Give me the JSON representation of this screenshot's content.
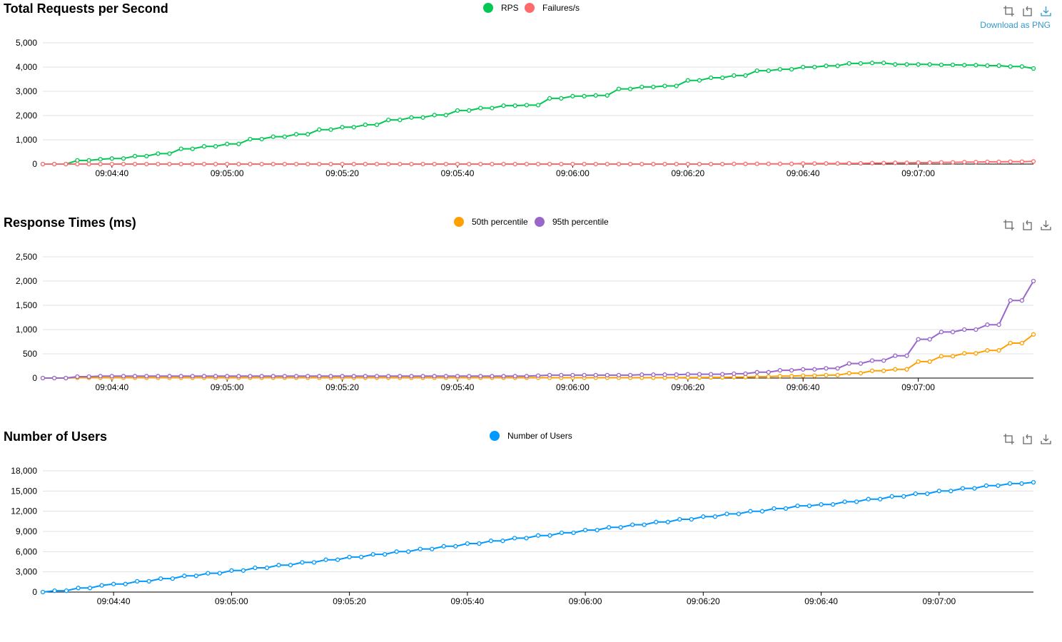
{
  "charts": [
    {
      "title": "Total Requests per Second",
      "tooltip": "Download as PNG",
      "legend": [
        {
          "name": "RPS",
          "color": "#00c853"
        },
        {
          "name": "Failures/s",
          "color": "#ff6b6b"
        }
      ]
    },
    {
      "title": "Response Times (ms)",
      "tooltip": "",
      "legend": [
        {
          "name": "50th percentile",
          "color": "#ff9f00"
        },
        {
          "name": "95th percentile",
          "color": "#9966cc"
        }
      ]
    },
    {
      "title": "Number of Users",
      "tooltip": "",
      "legend": [
        {
          "name": "Number of Users",
          "color": "#0099ff"
        }
      ]
    }
  ],
  "toolbox_icons": [
    "zoom-icon",
    "zoom-reset-icon",
    "download-icon"
  ],
  "chart_data": [
    {
      "type": "line",
      "title": "Total Requests per Second",
      "x_ticks": [
        "09:04:40",
        "09:05:00",
        "09:05:20",
        "09:05:40",
        "09:06:00",
        "09:06:20",
        "09:06:40",
        "09:07:00"
      ],
      "y_ticks": [
        "0",
        "1,000",
        "2,000",
        "3,000",
        "4,000",
        "5,000"
      ],
      "ylim": [
        0,
        5000
      ],
      "grid": true,
      "legend_position": "top-center",
      "x_time": {
        "first_sample": "09:04:28",
        "sample_interval_seconds": 2,
        "tick_interval_seconds": 20,
        "first_tick": "09:04:40"
      },
      "series": [
        {
          "name": "RPS",
          "color": "#00c853",
          "values": [
            0,
            0,
            0,
            150,
            150,
            200,
            230,
            230,
            330,
            330,
            430,
            430,
            630,
            630,
            730,
            730,
            830,
            830,
            1030,
            1030,
            1130,
            1130,
            1230,
            1230,
            1420,
            1420,
            1520,
            1520,
            1620,
            1620,
            1820,
            1820,
            1920,
            1920,
            2020,
            2020,
            2210,
            2210,
            2310,
            2310,
            2410,
            2410,
            2430,
            2430,
            2710,
            2710,
            2800,
            2800,
            2830,
            2830,
            3100,
            3100,
            3180,
            3180,
            3220,
            3220,
            3450,
            3450,
            3560,
            3560,
            3650,
            3650,
            3850,
            3850,
            3910,
            3910,
            4000,
            4000,
            4050,
            4050,
            4150,
            4150,
            4170,
            4170,
            4110,
            4110,
            4110,
            4110,
            4090,
            4090,
            4080,
            4080,
            4060,
            4060,
            4020,
            4020,
            3940
          ]
        },
        {
          "name": "Failures/s",
          "color": "#ff6b6b",
          "values": [
            0,
            0,
            0,
            0,
            0,
            0,
            0,
            0,
            0,
            0,
            0,
            0,
            0,
            0,
            0,
            0,
            0,
            0,
            0,
            0,
            0,
            0,
            0,
            0,
            0,
            0,
            0,
            0,
            0,
            0,
            0,
            0,
            0,
            0,
            0,
            0,
            0,
            0,
            0,
            0,
            0,
            0,
            0,
            0,
            0,
            0,
            0,
            0,
            0,
            0,
            0,
            0,
            0,
            0,
            0,
            0,
            0,
            0,
            0,
            0,
            5,
            5,
            10,
            10,
            10,
            10,
            20,
            20,
            25,
            25,
            30,
            30,
            40,
            40,
            50,
            50,
            60,
            60,
            70,
            70,
            80,
            80,
            90,
            90,
            100,
            100,
            110
          ]
        }
      ]
    },
    {
      "type": "line",
      "title": "Response Times (ms)",
      "x_ticks": [
        "09:04:40",
        "09:05:00",
        "09:05:20",
        "09:05:40",
        "09:06:00",
        "09:06:20",
        "09:06:40",
        "09:07:00"
      ],
      "y_ticks": [
        "0",
        "500",
        "1,000",
        "1,500",
        "2,000",
        "2,500"
      ],
      "ylim": [
        0,
        2500
      ],
      "grid": true,
      "legend_position": "top-center",
      "x_time": {
        "first_sample": "09:04:28",
        "sample_interval_seconds": 2,
        "tick_interval_seconds": 20,
        "first_tick": "09:04:40"
      },
      "series": [
        {
          "name": "50th percentile",
          "color": "#ff9f00",
          "values": [
            0,
            0,
            0,
            8,
            8,
            8,
            8,
            8,
            8,
            8,
            8,
            8,
            8,
            8,
            8,
            8,
            8,
            8,
            8,
            8,
            8,
            8,
            8,
            8,
            8,
            8,
            8,
            8,
            8,
            8,
            8,
            8,
            8,
            8,
            8,
            8,
            8,
            8,
            8,
            8,
            8,
            8,
            8,
            8,
            8,
            8,
            8,
            8,
            8,
            8,
            8,
            8,
            8,
            8,
            8,
            8,
            10,
            10,
            15,
            15,
            20,
            20,
            30,
            30,
            40,
            40,
            50,
            50,
            60,
            60,
            100,
            100,
            150,
            150,
            180,
            180,
            340,
            340,
            450,
            450,
            510,
            510,
            570,
            570,
            720,
            720,
            900
          ]
        },
        {
          "name": "95th percentile",
          "color": "#9966cc",
          "values": [
            0,
            0,
            0,
            30,
            30,
            40,
            40,
            40,
            40,
            40,
            40,
            40,
            40,
            40,
            40,
            40,
            40,
            40,
            40,
            40,
            40,
            40,
            40,
            40,
            40,
            40,
            40,
            40,
            40,
            40,
            40,
            40,
            40,
            40,
            40,
            40,
            40,
            40,
            40,
            40,
            40,
            40,
            40,
            50,
            60,
            60,
            60,
            60,
            60,
            60,
            60,
            60,
            70,
            70,
            70,
            70,
            80,
            80,
            80,
            80,
            90,
            90,
            120,
            120,
            160,
            160,
            180,
            180,
            200,
            200,
            300,
            300,
            360,
            360,
            460,
            460,
            800,
            800,
            950,
            950,
            1000,
            1000,
            1100,
            1100,
            1600,
            1600,
            2000
          ]
        }
      ]
    },
    {
      "type": "line",
      "title": "Number of Users",
      "x_ticks": [
        "09:04:40",
        "09:05:00",
        "09:05:20",
        "09:05:40",
        "09:06:00",
        "09:06:20",
        "09:06:40",
        "09:07:00"
      ],
      "y_ticks": [
        "0",
        "3,000",
        "6,000",
        "9,000",
        "12,000",
        "15,000",
        "18,000"
      ],
      "ylim": [
        0,
        18000
      ],
      "grid": true,
      "legend_position": "top-center",
      "x_time": {
        "first_sample": "09:04:28",
        "sample_interval_seconds": 2,
        "tick_interval_seconds": 20,
        "first_tick": "09:04:40"
      },
      "series": [
        {
          "name": "Number of Users",
          "color": "#0099ff",
          "values": [
            0,
            200,
            200,
            600,
            600,
            1000,
            1200,
            1200,
            1600,
            1600,
            2000,
            2000,
            2400,
            2400,
            2800,
            2800,
            3200,
            3200,
            3600,
            3600,
            4000,
            4000,
            4400,
            4400,
            4800,
            4800,
            5200,
            5200,
            5600,
            5600,
            6000,
            6000,
            6400,
            6400,
            6800,
            6800,
            7200,
            7200,
            7600,
            7600,
            8000,
            8000,
            8400,
            8400,
            8800,
            8800,
            9200,
            9200,
            9600,
            9600,
            10000,
            10000,
            10400,
            10400,
            10800,
            10800,
            11200,
            11200,
            11600,
            11600,
            12000,
            12000,
            12400,
            12400,
            12800,
            12800,
            13000,
            13000,
            13400,
            13400,
            13800,
            13800,
            14200,
            14200,
            14600,
            14600,
            15000,
            15000,
            15400,
            15400,
            15800,
            15800,
            16100,
            16100,
            16300
          ]
        }
      ]
    }
  ]
}
